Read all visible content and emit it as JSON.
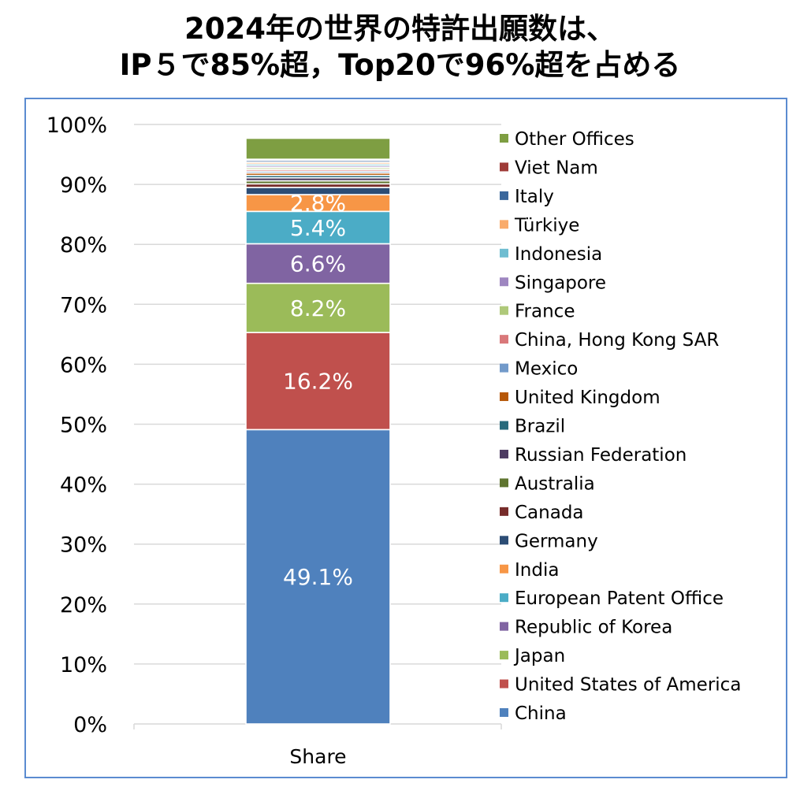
{
  "title": {
    "line1": "2024年の世界の特許出願数は、",
    "line2": "IP５で85%超，Top20で96%超を占める"
  },
  "chart_data": {
    "type": "bar",
    "stacked": true,
    "categories": [
      "Share"
    ],
    "ylim": [
      0,
      100
    ],
    "yticks": [
      "0%",
      "10%",
      "20%",
      "30%",
      "40%",
      "50%",
      "60%",
      "70%",
      "80%",
      "90%",
      "100%"
    ],
    "grid": true,
    "legend_position": "right",
    "series": [
      {
        "name": "China",
        "values": [
          49.1
        ],
        "color": "#4f81bd",
        "label": "49.1%"
      },
      {
        "name": "United States of America",
        "values": [
          16.2
        ],
        "color": "#c0504d",
        "label": "16.2%"
      },
      {
        "name": "Japan",
        "values": [
          8.2
        ],
        "color": "#9bbb59",
        "label": "8.2%"
      },
      {
        "name": "Republic of Korea",
        "values": [
          6.6
        ],
        "color": "#8064a2",
        "label": "6.6%"
      },
      {
        "name": "European Patent Office",
        "values": [
          5.4
        ],
        "color": "#4bacc6",
        "label": "5.4%"
      },
      {
        "name": "India",
        "values": [
          2.8
        ],
        "color": "#f79646",
        "label": "2.8%"
      },
      {
        "name": "Germany",
        "values": [
          1.2
        ],
        "color": "#2c4d75",
        "label": ""
      },
      {
        "name": "Canada",
        "values": [
          0.6
        ],
        "color": "#772c2a",
        "label": ""
      },
      {
        "name": "Australia",
        "values": [
          0.5
        ],
        "color": "#5f7530",
        "label": ""
      },
      {
        "name": "Russian Federation",
        "values": [
          0.5
        ],
        "color": "#4d3b62",
        "label": ""
      },
      {
        "name": "Brazil",
        "values": [
          0.4
        ],
        "color": "#276a7c",
        "label": ""
      },
      {
        "name": "United Kingdom",
        "values": [
          0.4
        ],
        "color": "#b65708",
        "label": ""
      },
      {
        "name": "Mexico",
        "values": [
          0.3
        ],
        "color": "#729aca",
        "label": ""
      },
      {
        "name": "China, Hong Kong SAR",
        "values": [
          0.3
        ],
        "color": "#d9787a",
        "label": ""
      },
      {
        "name": "France",
        "values": [
          0.3
        ],
        "color": "#afc97a",
        "label": ""
      },
      {
        "name": "Singapore",
        "values": [
          0.3
        ],
        "color": "#9e86c0",
        "label": ""
      },
      {
        "name": "Indonesia",
        "values": [
          0.3
        ],
        "color": "#6fbdd1",
        "label": ""
      },
      {
        "name": "Türkiye",
        "values": [
          0.3
        ],
        "color": "#f9ab6b",
        "label": ""
      },
      {
        "name": "Italy",
        "values": [
          0.3
        ],
        "color": "#3a679c",
        "label": ""
      },
      {
        "name": "Viet Nam",
        "values": [
          0.2
        ],
        "color": "#9f3b38",
        "label": ""
      },
      {
        "name": "Other Offices",
        "values": [
          3.5
        ],
        "color": "#7e9e42",
        "label": ""
      }
    ]
  }
}
